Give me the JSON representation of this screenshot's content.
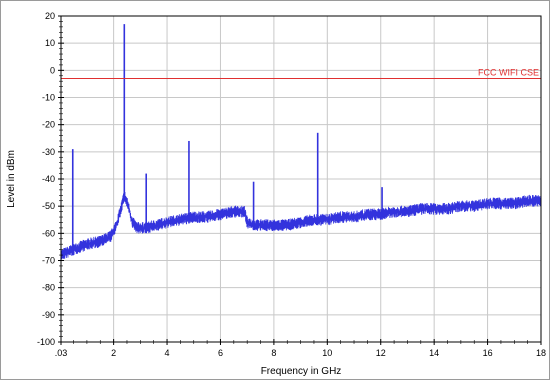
{
  "chart_data": {
    "type": "line",
    "title": "",
    "xlabel": "Frequency in GHz",
    "ylabel": "Level in dBm",
    "xlim": [
      0.03,
      18
    ],
    "ylim": [
      -100,
      20
    ],
    "grid": true,
    "x_ticks": [
      {
        "value": 0.03,
        "label": ".03"
      },
      {
        "value": 2,
        "label": "2"
      },
      {
        "value": 4,
        "label": "4"
      },
      {
        "value": 6,
        "label": "6"
      },
      {
        "value": 8,
        "label": "8"
      },
      {
        "value": 10,
        "label": "10"
      },
      {
        "value": 12,
        "label": "12"
      },
      {
        "value": 14,
        "label": "14"
      },
      {
        "value": 16,
        "label": "16"
      },
      {
        "value": 18,
        "label": "18"
      }
    ],
    "y_ticks": [
      {
        "value": 20,
        "label": "20"
      },
      {
        "value": 10,
        "label": "10"
      },
      {
        "value": 0,
        "label": "0"
      },
      {
        "value": -10,
        "label": "-10"
      },
      {
        "value": -20,
        "label": "-20"
      },
      {
        "value": -30,
        "label": "-30"
      },
      {
        "value": -40,
        "label": "-40"
      },
      {
        "value": -50,
        "label": "-50"
      },
      {
        "value": -60,
        "label": "-60"
      },
      {
        "value": -70,
        "label": "-70"
      },
      {
        "value": -80,
        "label": "-80"
      },
      {
        "value": -90,
        "label": "-90"
      },
      {
        "value": -100,
        "label": "-100"
      }
    ],
    "limit_line": {
      "label": "FCC WIFI CSE",
      "value": -3,
      "color": "#e03030"
    },
    "series": [
      {
        "color": "#3333dd",
        "floor": {
          "x": [
            0.03,
            0.5,
            1.0,
            1.5,
            1.9,
            2.1,
            2.25,
            2.4,
            2.55,
            2.7,
            2.9,
            3.2,
            3.6,
            4.0,
            4.5,
            5.0,
            5.5,
            6.0,
            6.5,
            6.9,
            7.0,
            7.3,
            7.6,
            8.0,
            8.5,
            9.0,
            9.5,
            10.0,
            10.5,
            11.0,
            11.5,
            12.0,
            12.5,
            13.0,
            13.5,
            14.0,
            14.5,
            15.0,
            15.5,
            16.0,
            16.5,
            17.0,
            17.5,
            18.0
          ],
          "y": [
            -68,
            -66,
            -64,
            -63,
            -61,
            -57,
            -52,
            -46,
            -50,
            -56,
            -58,
            -58,
            -57,
            -56,
            -55,
            -54,
            -54,
            -53,
            -52,
            -52,
            -56,
            -57,
            -57,
            -57,
            -57,
            -56,
            -55,
            -55,
            -54,
            -54,
            -53,
            -53,
            -52,
            -52,
            -51,
            -51,
            -51,
            -50,
            -50,
            -49,
            -49,
            -49,
            -48,
            -48
          ]
        },
        "spikes": [
          {
            "x": 0.47,
            "y": -29
          },
          {
            "x": 2.4,
            "y": 17
          },
          {
            "x": 3.22,
            "y": -38
          },
          {
            "x": 4.82,
            "y": -26
          },
          {
            "x": 7.24,
            "y": -41
          },
          {
            "x": 9.64,
            "y": -23
          },
          {
            "x": 12.05,
            "y": -43
          }
        ]
      }
    ]
  }
}
